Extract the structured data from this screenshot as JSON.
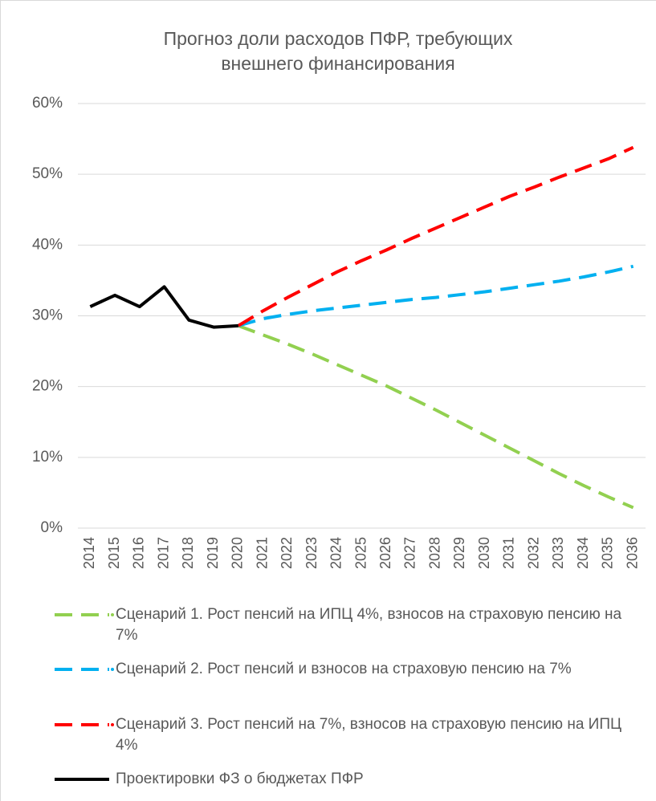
{
  "chart_data": {
    "type": "line",
    "title": "Прогноз доли расходов ПФР, требующих внешнего финансирования",
    "categories": [
      "2014",
      "2015",
      "2016",
      "2017",
      "2018",
      "2019",
      "2020",
      "2021",
      "2022",
      "2023",
      "2024",
      "2025",
      "2026",
      "2027",
      "2028",
      "2029",
      "2030",
      "2031",
      "2032",
      "2033",
      "2034",
      "2035",
      "2036"
    ],
    "series": [
      {
        "name": "Сценарий 1. Рост пенсий на ИПЦ 4%, взносов на страховую пенсию на 7%",
        "color": "#92d050",
        "dashed": true,
        "values": [
          null,
          null,
          null,
          null,
          null,
          null,
          28.6,
          27.3,
          26.0,
          24.6,
          23.1,
          21.6,
          20.1,
          18.4,
          16.7,
          14.9,
          13.1,
          11.3,
          9.5,
          7.7,
          6.0,
          4.4,
          2.9
        ]
      },
      {
        "name": "Сценарий 2. Рост пенсий и взносов на страховую пенсию на 7%",
        "color": "#00b0f0",
        "dashed": true,
        "values": [
          null,
          null,
          null,
          null,
          null,
          null,
          28.6,
          29.6,
          30.2,
          30.7,
          31.1,
          31.5,
          31.9,
          32.3,
          32.6,
          33.0,
          33.4,
          33.9,
          34.4,
          34.9,
          35.5,
          36.2,
          37.0
        ]
      },
      {
        "name": "Сценарий 3. Рост пенсий на 7%, взносов на страховую пенсию на ИПЦ 4%",
        "color": "#ff0000",
        "dashed": true,
        "values": [
          null,
          null,
          null,
          null,
          null,
          null,
          28.6,
          30.7,
          32.6,
          34.4,
          36.2,
          37.8,
          39.3,
          40.9,
          42.4,
          43.9,
          45.4,
          46.9,
          48.2,
          49.6,
          50.9,
          52.2,
          53.8
        ]
      },
      {
        "name": "Проектировки ФЗ о бюджетах ПФР",
        "color": "#000000",
        "dashed": false,
        "values": [
          31.3,
          32.9,
          31.3,
          34.1,
          29.4,
          28.4,
          28.6,
          null,
          null,
          null,
          null,
          null,
          null,
          null,
          null,
          null,
          null,
          null,
          null,
          null,
          null,
          null,
          null
        ]
      }
    ],
    "ylim": [
      0,
      60
    ],
    "yticks": [
      {
        "value": 0,
        "label": "0%"
      },
      {
        "value": 10,
        "label": "10%"
      },
      {
        "value": 20,
        "label": "20%"
      },
      {
        "value": 30,
        "label": "30%"
      },
      {
        "value": 40,
        "label": "40%"
      },
      {
        "value": 50,
        "label": "50%"
      },
      {
        "value": 60,
        "label": "60%"
      }
    ],
    "grid": true,
    "legend": "bottom"
  }
}
